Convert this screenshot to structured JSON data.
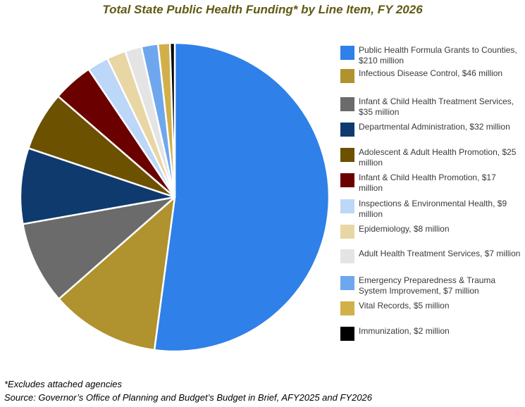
{
  "chart_data": {
    "type": "pie",
    "title": "Total State Public Health Funding* by Line Item, FY 2026",
    "unit": "million",
    "slices": [
      {
        "label": "Public Health Formula Grants to Counties, $210 million",
        "value": 210,
        "color": "#2f80e8"
      },
      {
        "label": "Infectious Disease Control, $46 million",
        "value": 46,
        "color": "#b0922e"
      },
      {
        "label": "Infant & Child Health Treatment Services, $35 million",
        "value": 35,
        "color": "#6b6b6b"
      },
      {
        "label": "Departmental Administration, $32 million",
        "value": 32,
        "color": "#0f3a6e"
      },
      {
        "label": "Adolescent & Adult Health Promotion, $25 million",
        "value": 25,
        "color": "#6b5100"
      },
      {
        "label": "Infant & Child Health Promotion, $17 million",
        "value": 17,
        "color": "#6b0000"
      },
      {
        "label": "Inspections & Environmental Health, $9 million",
        "value": 9,
        "color": "#bcd7f7"
      },
      {
        "label": "Epidemiology, $8 million",
        "value": 8,
        "color": "#e8d6a4"
      },
      {
        "label": "Adult Health Treatment Services, $7 million",
        "value": 7,
        "color": "#e4e4e4"
      },
      {
        "label": "Emergency Preparedness & Trauma System Improvement, $7 million",
        "value": 7,
        "color": "#6ea7ee"
      },
      {
        "label": "Vital Records, $5 million",
        "value": 5,
        "color": "#d1b04a"
      },
      {
        "label": "Immunization, $2 million",
        "value": 2,
        "color": "#000000"
      }
    ],
    "legend_position": "right"
  },
  "footnotes": {
    "note": "*Excludes attached agencies",
    "source": "Source: Governor’s Office of Planning and Budget’s Budget in Brief, AFY2025 and FY2026"
  }
}
